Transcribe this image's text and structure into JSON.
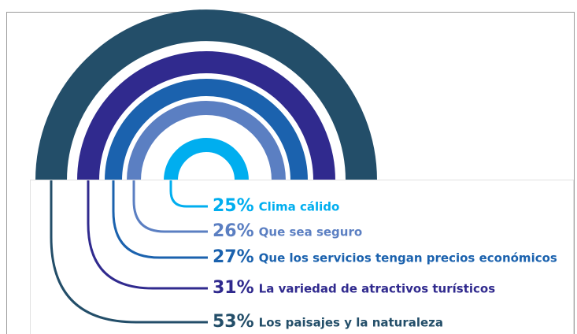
{
  "chart_data": {
    "type": "radial",
    "categories": [
      "Clima cálido",
      "Que sea seguro",
      "Que los servicios tengan precios económicos",
      "La variedad de atractivos turísticos",
      "Los paisajes y la naturaleza"
    ],
    "series": [
      {
        "values": [
          25,
          26,
          27,
          31,
          53
        ],
        "value_labels": [
          "25%",
          "26%",
          "27%",
          "31%",
          "53%"
        ],
        "colors": [
          "#00aeef",
          "#5b7fc2",
          "#1b62ae",
          "#302a8e",
          "#234e69"
        ]
      }
    ]
  }
}
